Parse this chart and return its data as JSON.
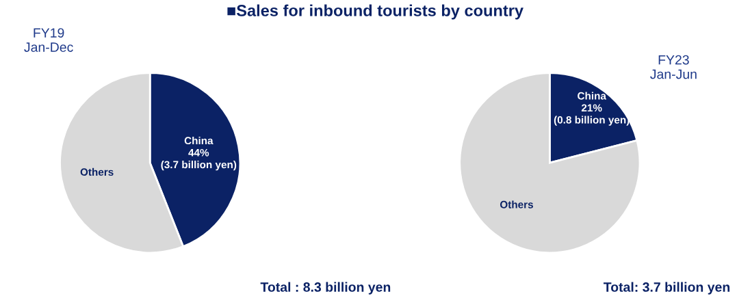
{
  "chart_data": [
    {
      "type": "pie",
      "title": "■Sales for inbound tourists by country",
      "subtitle": "FY19\nJan-Dec",
      "categories": [
        "China",
        "Others"
      ],
      "values": [
        44,
        56
      ],
      "colors": [
        "#0b2265",
        "#d9d9d9"
      ],
      "value_labels": [
        "44%\n(3.7 billion yen)",
        null
      ],
      "annotations": [
        "Total : 8.3 billion yen"
      ],
      "legend": false
    },
    {
      "type": "pie",
      "subtitle": "FY23\nJan-Jun",
      "categories": [
        "China",
        "Others"
      ],
      "values": [
        21,
        79
      ],
      "colors": [
        "#0b2265",
        "#d9d9d9"
      ],
      "value_labels": [
        "21%\n(0.8 billion yen)",
        null
      ],
      "annotations": [
        "Total: 3.7 billion yen"
      ],
      "legend": false
    }
  ]
}
